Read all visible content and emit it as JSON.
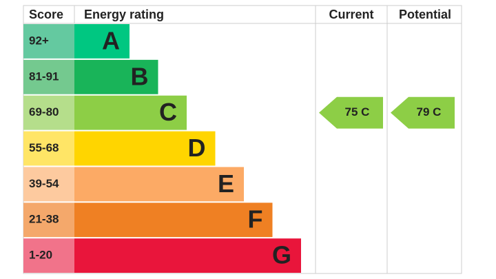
{
  "header": {
    "score": "Score",
    "rating": "Energy rating",
    "current": "Current",
    "potential": "Potential"
  },
  "bands": [
    {
      "score": "92+",
      "letter": "A",
      "color": "#00c781",
      "score_color": "#64c9a0"
    },
    {
      "score": "81-91",
      "letter": "B",
      "color": "#19b459",
      "score_color": "#74c98f"
    },
    {
      "score": "69-80",
      "letter": "C",
      "color": "#8dce46",
      "score_color": "#b5de8b"
    },
    {
      "score": "55-68",
      "letter": "D",
      "color": "#ffd500",
      "score_color": "#ffe566"
    },
    {
      "score": "39-54",
      "letter": "E",
      "color": "#fcaa65",
      "score_color": "#fdca9f"
    },
    {
      "score": "21-38",
      "letter": "F",
      "color": "#ef8023",
      "score_color": "#f4a86b"
    },
    {
      "score": "1-20",
      "letter": "G",
      "color": "#e9153b",
      "score_color": "#f1738a"
    }
  ],
  "current": {
    "label": "75 C",
    "color": "#8dce46"
  },
  "potential": {
    "label": "79 C",
    "color": "#8dce46"
  }
}
